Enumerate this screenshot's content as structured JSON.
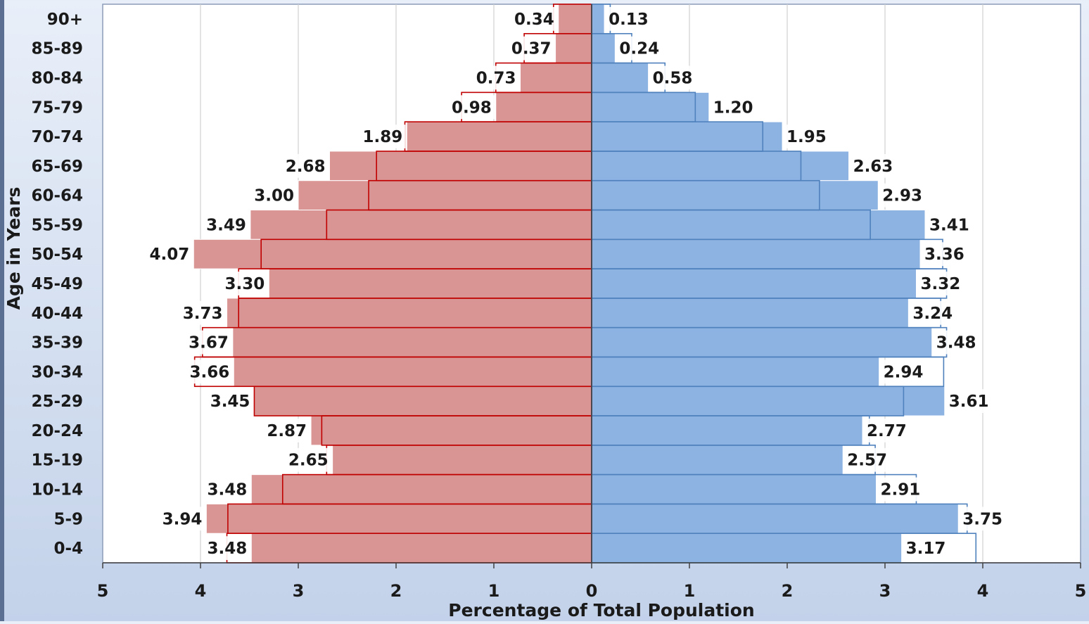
{
  "chart_data": {
    "type": "bar",
    "orientation": "horizontal",
    "layout": "population-pyramid",
    "ylabel": "Age in Years",
    "xlabel": "Percentage of Total Population",
    "xlim": [
      -5,
      5
    ],
    "x_ticks": [
      "5",
      "4",
      "3",
      "2",
      "1",
      "0",
      "1",
      "2",
      "3",
      "4",
      "5"
    ],
    "grid": "vertical",
    "categories": [
      "90+",
      "85-89",
      "80-84",
      "75-79",
      "70-74",
      "65-69",
      "60-64",
      "55-59",
      "50-54",
      "45-49",
      "40-44",
      "35-39",
      "30-34",
      "25-29",
      "20-24",
      "15-19",
      "10-14",
      "5-9",
      "0-4"
    ],
    "series": [
      {
        "side": "left",
        "color": "#d99594",
        "values": [
          0.34,
          0.37,
          0.73,
          0.98,
          1.89,
          2.68,
          3.0,
          3.49,
          4.07,
          3.3,
          3.73,
          3.67,
          3.66,
          3.45,
          2.87,
          2.65,
          3.48,
          3.94,
          3.48
        ],
        "labels": [
          "0.34",
          "0.37",
          "0.73",
          "0.98",
          "1.89",
          "2.68",
          "3.00",
          "3.49",
          "4.07",
          "3.30",
          "3.73",
          "3.67",
          "3.66",
          "3.45",
          "2.87",
          "2.65",
          "3.48",
          "3.94",
          "3.48"
        ],
        "outline_color": "#c00000",
        "outline_values": [
          0.39,
          0.69,
          0.98,
          1.33,
          1.91,
          2.2,
          2.28,
          2.71,
          3.38,
          3.61,
          3.61,
          3.98,
          4.06,
          3.45,
          2.76,
          2.71,
          3.16,
          3.72,
          3.73
        ]
      },
      {
        "side": "right",
        "color": "#8db3e2",
        "values": [
          0.13,
          0.24,
          0.58,
          1.2,
          1.95,
          2.63,
          2.93,
          3.41,
          3.36,
          3.32,
          3.24,
          3.48,
          2.94,
          3.61,
          2.77,
          2.57,
          2.91,
          3.75,
          3.17
        ],
        "labels": [
          "0.13",
          "0.24",
          "0.58",
          "1.20",
          "1.95",
          "2.63",
          "2.93",
          "3.41",
          "3.36",
          "3.32",
          "3.24",
          "3.48",
          "2.94",
          "3.61",
          "2.77",
          "2.57",
          "2.91",
          "3.75",
          "3.17"
        ],
        "outline_color": "#4f81bd",
        "outline_values": [
          0.19,
          0.41,
          0.75,
          1.06,
          1.75,
          2.14,
          2.33,
          2.85,
          3.59,
          3.63,
          3.57,
          3.63,
          3.6,
          3.19,
          2.84,
          2.9,
          3.32,
          3.84,
          3.93
        ]
      }
    ]
  }
}
